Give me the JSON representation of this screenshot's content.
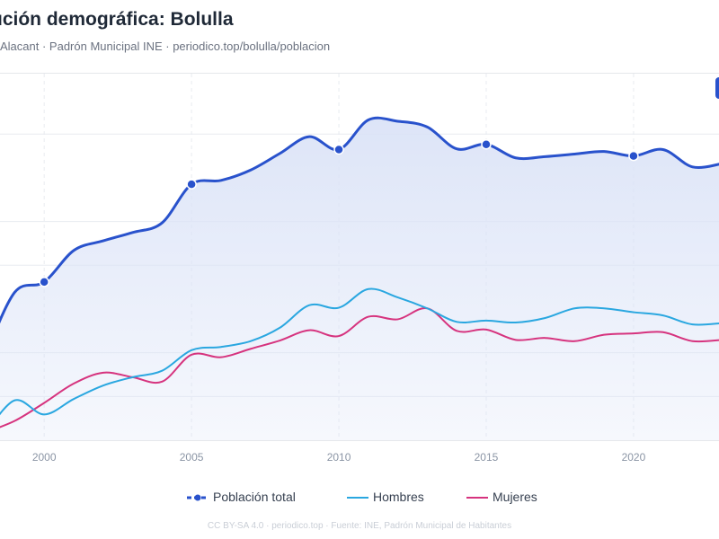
{
  "header": {
    "title": "ución demográfica: Bolulla",
    "subtitle": "Alacant · Padrón Municipal INE · periodico.top/bolulla/poblacion"
  },
  "footer": {
    "text": "CC BY-SA 4.0 · periodico.top · Fuente: INE, Padrón Municipal de Habitantes"
  },
  "colors": {
    "total": "#2952cc",
    "hombres": "#2aa7e0",
    "mujeres": "#d6337e",
    "grid": "#e8ebf0",
    "area": "#dbe3f7"
  },
  "chart_data": {
    "type": "line",
    "x_ticks": [
      2000,
      2005,
      2010,
      2015,
      2020
    ],
    "xlim": [
      1998.5,
      2022.9
    ],
    "ylim": [
      0,
      570
    ],
    "y_gridlines": [
      68,
      136,
      272,
      340,
      476
    ],
    "grid": true,
    "legend": "bottom",
    "x": [
      1998,
      1999,
      2000,
      2001,
      2002,
      2003,
      2004,
      2005,
      2006,
      2007,
      2008,
      2009,
      2010,
      2011,
      2012,
      2013,
      2014,
      2015,
      2016,
      2017,
      2018,
      2019,
      2020,
      2021,
      2022,
      2023
    ],
    "series": [
      {
        "name": "Población total",
        "key": "total",
        "markers": [
          2000,
          2005,
          2010,
          2015,
          2020
        ],
        "values": [
          132,
          230,
          246,
          295,
          310,
          323,
          338,
          398,
          404,
          420,
          446,
          472,
          452,
          498,
          496,
          487,
          453,
          460,
          439,
          441,
          445,
          449,
          442,
          452,
          425,
          430
        ]
      },
      {
        "name": "Hombres",
        "key": "hombres",
        "values": [
          10,
          62,
          40,
          64,
          85,
          98,
          108,
          140,
          145,
          154,
          175,
          210,
          206,
          235,
          222,
          205,
          184,
          186,
          183,
          190,
          205,
          205,
          199,
          194,
          180,
          182
        ]
      },
      {
        "name": "Mujeres",
        "key": "mujeres",
        "values": [
          12,
          30,
          58,
          88,
          105,
          98,
          91,
          133,
          129,
          142,
          155,
          171,
          162,
          192,
          188,
          205,
          170,
          172,
          156,
          159,
          154,
          164,
          166,
          168,
          154,
          156
        ]
      }
    ]
  }
}
